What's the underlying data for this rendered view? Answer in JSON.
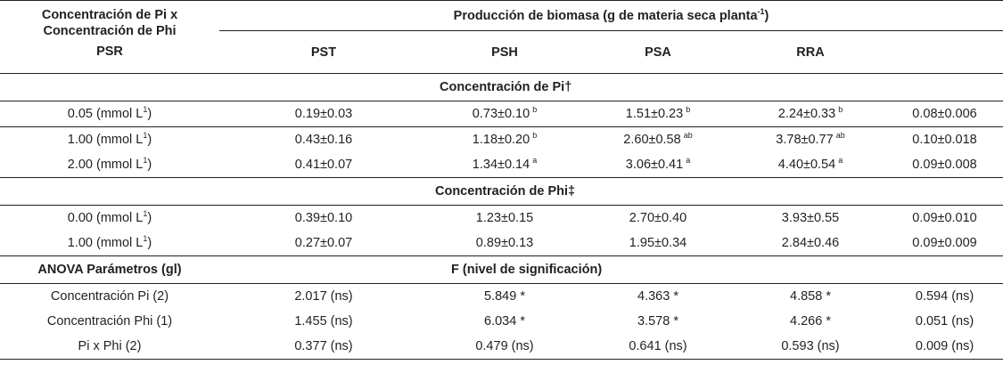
{
  "header": {
    "left_line1": "Concentración de Pi x",
    "left_line2": "Concentración de Phi",
    "left_line3": "PSR",
    "group_title": "Producción de biomasa (g de materia seca planta",
    "group_title_sup": "-1",
    "group_title_end": ")",
    "columns": [
      "PST",
      "PSH",
      "PSA",
      "RRA",
      ""
    ]
  },
  "section_pi": {
    "title": "Concentración de Pi†",
    "rows": [
      {
        "label": "0.05 (mmol L",
        "label_sup": "1",
        "label_end": ")",
        "cells": [
          {
            "v": "0.19±0.03",
            "s": ""
          },
          {
            "v": "0.73±0.10",
            "s": "b"
          },
          {
            "v": "1.51±0.23",
            "s": "b"
          },
          {
            "v": "2.24±0.33",
            "s": "b"
          },
          {
            "v": "0.08±0.006",
            "s": ""
          }
        ]
      },
      {
        "label": "1.00 (mmol L",
        "label_sup": "1",
        "label_end": ")",
        "cells": [
          {
            "v": "0.43±0.16",
            "s": ""
          },
          {
            "v": "1.18±0.20",
            "s": "b"
          },
          {
            "v": "2.60±0.58",
            "s": "ab"
          },
          {
            "v": "3.78±0.77",
            "s": "ab"
          },
          {
            "v": "0.10±0.018",
            "s": ""
          }
        ]
      },
      {
        "label": "2.00 (mmol L",
        "label_sup": "1",
        "label_end": ")",
        "cells": [
          {
            "v": "0.41±0.07",
            "s": ""
          },
          {
            "v": "1.34±0.14",
            "s": "a"
          },
          {
            "v": "3.06±0.41",
            "s": "a"
          },
          {
            "v": "4.40±0.54",
            "s": "a"
          },
          {
            "v": "0.09±0.008",
            "s": ""
          }
        ]
      }
    ]
  },
  "section_phi": {
    "title": "Concentración de Phi‡",
    "rows": [
      {
        "label": "0.00 (mmol L",
        "label_sup": "1",
        "label_end": ")",
        "cells": [
          {
            "v": "0.39±0.10",
            "s": ""
          },
          {
            "v": "1.23±0.15",
            "s": ""
          },
          {
            "v": "2.70±0.40",
            "s": ""
          },
          {
            "v": "3.93±0.55",
            "s": ""
          },
          {
            "v": "0.09±0.010",
            "s": ""
          }
        ]
      },
      {
        "label": "1.00 (mmol L",
        "label_sup": "1",
        "label_end": ")",
        "cells": [
          {
            "v": "0.27±0.07",
            "s": ""
          },
          {
            "v": "0.89±0.13",
            "s": ""
          },
          {
            "v": "1.95±0.34",
            "s": ""
          },
          {
            "v": "2.84±0.46",
            "s": ""
          },
          {
            "v": "0.09±0.009",
            "s": ""
          }
        ]
      }
    ]
  },
  "anova": {
    "left_title": "ANOVA Parámetros (gl)",
    "title": "F (nivel de significación)",
    "rows": [
      {
        "label": "Concentración Pi (2)",
        "cells": [
          "2.017 (ns)",
          "5.849 *",
          "4.363 *",
          "4.858 *",
          "0.594 (ns)"
        ]
      },
      {
        "label": "Concentración Phi (1)",
        "cells": [
          "1.455 (ns)",
          "6.034 *",
          "3.578 *",
          "4.266 *",
          "0.051 (ns)"
        ]
      },
      {
        "label": "Pi x Phi (2)",
        "cells": [
          "0.377 (ns)",
          "0.479 (ns)",
          "0.641 (ns)",
          "0.593 (ns)",
          "0.009 (ns)"
        ]
      }
    ]
  }
}
